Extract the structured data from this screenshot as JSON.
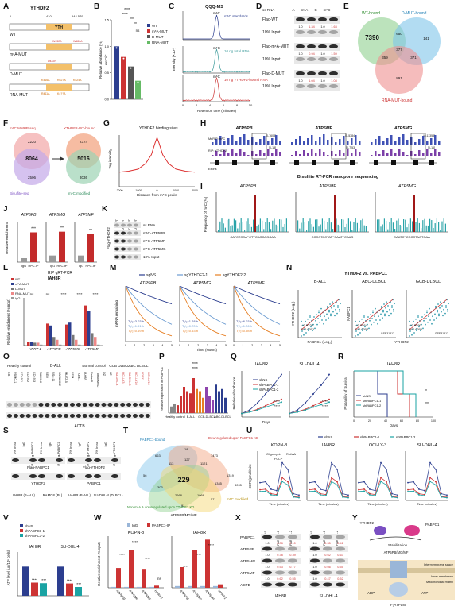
{
  "panels": {
    "A": {
      "letter": "A",
      "title": "YTHDF2",
      "pos_start": "1",
      "pos_mid": "410",
      "pos_end": "544 579",
      "domain": "YTH",
      "constructs": [
        "WT",
        "m⁶A-MUT",
        "D-MUT",
        "RNA-MUT"
      ],
      "mutations": {
        "m6a": [
          "W432A",
          "W486A"
        ],
        "d": [
          "D422N"
        ],
        "rna": [
          "K416A",
          "R527A",
          "K524A",
          "R411A",
          "K4??A"
        ]
      }
    },
    "B": {
      "letter": "B",
      "ylabel": "m⁶C/C",
      "ylabel2": "Relative abundance (%)",
      "legend": [
        "WT",
        "m⁶A-MUT",
        "D-MUT",
        "RNA-MUT"
      ],
      "sig": [
        "****",
        "****",
        "**",
        "**",
        "ns"
      ],
      "chart_data": {
        "type": "bar",
        "categories": [
          "WT",
          "m6A-MUT",
          "D-MUT",
          "RNA-MUT"
        ],
        "values": [
          1.0,
          0.8,
          0.62,
          0.35
        ],
        "ylim": [
          0,
          1.5
        ],
        "yticks": [
          "0.0",
          "0.5",
          "1.0",
          "1.5"
        ],
        "colors": [
          "#2c3e8f",
          "#c33",
          "#555",
          "#6b6"
        ]
      }
    },
    "C": {
      "letter": "C",
      "title": "QQQ-MS",
      "traces": [
        "m⁶C standards",
        "10 ng total RNA",
        "10 ng YTHDF2-bound RNA"
      ],
      "peak_label": "m⁶C",
      "ylabel": "Intensity (×10⁵)",
      "xlabel": "Retention time (minutes)",
      "xticks": [
        "0",
        "2",
        "4",
        "6",
        "8",
        "10"
      ]
    },
    "D": {
      "letter": "D",
      "header": [
        "ss RNA",
        "A",
        "m⁶A",
        "C",
        "m⁶C"
      ],
      "rows": [
        {
          "label": "Flag-WT",
          "vals": [
            "1.0",
            "1.34",
            "1.0",
            "1.63"
          ]
        },
        {
          "label": "10% Input",
          "vals": []
        },
        {
          "label": "Flag-m⁶A-MUT",
          "vals": [
            "1.0",
            "0.94",
            "1.0",
            "1.59"
          ]
        },
        {
          "label": "10% Input",
          "vals": []
        },
        {
          "label": "Flag-D-MUT",
          "vals": [
            "1.0",
            "1.04",
            "1.0",
            "1.08"
          ]
        },
        {
          "label": "10% Input",
          "vals": []
        }
      ]
    },
    "E": {
      "letter": "E",
      "sets": [
        "WT-bound",
        "D-MUT-bound",
        "RNA-MUT-bound"
      ],
      "values": [
        "7390",
        "650",
        "141",
        "377",
        "359",
        "371",
        "891"
      ]
    },
    "F": {
      "letter": "F",
      "left_top": "m⁶C MeRIP-seq",
      "left_bottom": "Bisulfite-seq",
      "left_vals": [
        "2220",
        "8064",
        "2506"
      ],
      "right_top": "YTHDF2-WT-bound",
      "right_bottom": "m⁶C modified",
      "right_vals": [
        "2374",
        "5016",
        "3036"
      ]
    },
    "G": {
      "letter": "G",
      "title": "YTHDF2 binding sites",
      "ylabel": "Tag intensity",
      "xlabel": "Distance from m⁶C peaks",
      "xticks": [
        "-2000",
        "-1500",
        "-1000",
        "-500",
        "0",
        "500",
        "1000",
        "1500",
        "2000"
      ],
      "chart_data": {
        "type": "line",
        "x": [
          -2000,
          -1500,
          -1000,
          -600,
          -300,
          -100,
          0,
          100,
          300,
          600,
          1000,
          1500,
          2000
        ],
        "y": [
          0.28,
          0.3,
          0.34,
          0.45,
          0.62,
          0.85,
          0.95,
          0.85,
          0.62,
          0.45,
          0.34,
          0.3,
          0.28
        ]
      }
    },
    "H": {
      "letter": "H",
      "genes": [
        "ATP5PB",
        "ATP5MF",
        "ATP5MG"
      ],
      "tracks": [
        "MeRIP: m⁶C",
        "RIP: YTHDF2",
        "Exons"
      ],
      "ranges": [
        [
          "0-7608",
          "0-13"
        ],
        [
          "0-5384",
          "0-7.53"
        ],
        [
          "0-11358",
          "0-16"
        ]
      ],
      "footer": "Bisulfite RT-PCR nanopore sequencing"
    },
    "I": {
      "letter": "I",
      "ylabel": "Frequency of m⁶C (%)",
      "genes": [
        "ATP5PB",
        "ATP5MF",
        "ATP5MG"
      ],
      "seqs": [
        "CATCTCCAᵐCTTCAGCAGGAA",
        "CCCGTACTATᵐCAATᵐCAAG",
        "CAATCᵐCCCCTACTGAA"
      ]
    },
    "J": {
      "letter": "J",
      "genes": [
        "ATP5PB",
        "ATP5MG",
        "ATP5MF"
      ],
      "ylabel": "Relative enrichment",
      "groups": [
        "IgG",
        "m⁶C-IP"
      ],
      "sig": [
        "***",
        "**",
        "**"
      ],
      "chart_data": {
        "type": "bar",
        "series": [
          {
            "gene": "ATP5PB",
            "values": [
              1.0,
              7.5
            ]
          },
          {
            "gene": "ATP5MG",
            "values": [
              1.0,
              4.6
            ]
          },
          {
            "gene": "ATP5MF",
            "values": [
              1.0,
              4.2
            ]
          }
        ],
        "ylims": [
          [
            0,
            10
          ],
          [
            0,
            6
          ],
          [
            0,
            6
          ]
        ]
      }
    },
    "K": {
      "letter": "K",
      "cols": [
        "WT",
        "m⁶A-MUT",
        "D-MUT",
        "RNA-MUT"
      ],
      "rows": [
        "ss RNA",
        "m⁶C-ATP5PB",
        "m⁶C-ATP5MF",
        "m⁶C-ATP5MG",
        "10% Input"
      ],
      "side": "Flag-YTHDF2"
    },
    "L": {
      "letter": "L",
      "title": "RIP qRT-PCR",
      "subtitle": "IAH8R",
      "legend": [
        "WT",
        "m⁶A-MUT",
        "D-MUT",
        "RNA-MUT",
        "IgG"
      ],
      "ylabel": "Relative enrichment (%Input)",
      "categories": [
        "HPRT-1",
        "ATP5PB",
        "ATP5MG",
        "ATP5MF"
      ],
      "sig": [
        "ns",
        "ns",
        "****",
        "****",
        "****"
      ],
      "chart_data": {
        "type": "bar",
        "categories": [
          "HPRT-1",
          "ATP5PB",
          "ATP5MG",
          "ATP5MF"
        ],
        "series": [
          {
            "name": "WT",
            "values": [
              0.4,
              2.3,
              2.2,
              4.2
            ]
          },
          {
            "name": "m6A-MUT",
            "values": [
              0.4,
              2.1,
              2.4,
              3.6
            ]
          },
          {
            "name": "D-MUT",
            "values": [
              0.3,
              0.9,
              1.1,
              1.3
            ]
          },
          {
            "name": "RNA-MUT",
            "values": [
              0.3,
              0.6,
              0.6,
              0.9
            ]
          },
          {
            "name": "IgG",
            "values": [
              0.1,
              0.1,
              0.1,
              0.1
            ]
          }
        ],
        "ylim": [
          0,
          5
        ]
      }
    },
    "M": {
      "letter": "M",
      "legend": [
        "sgNS",
        "sgYTHDF2-1",
        "sgYTHDF2-2"
      ],
      "genes": [
        "ATP5PB",
        "ATP5MG",
        "ATP5MF"
      ],
      "ylabel": "mRNA remaining",
      "xlabel": "Time (Hours)",
      "halflives": [
        [
          "T₁/₂=3.03 h",
          "T₁/₂=1.91 h",
          "T₁/₂=0.69 h"
        ],
        [
          "T₁/₂=1.28 h",
          "T₁/₂=0.70 h",
          "T₁/₂=0.53 h"
        ],
        [
          "T₁/₂=6.03 h",
          "T₁/₂=1.26 h",
          "T₁/₂=0.98 h"
        ]
      ],
      "xticks": [
        "0",
        "1",
        "2",
        "3",
        "4",
        "5"
      ]
    },
    "N": {
      "letter": "N",
      "title": "YTHDF2 vs. PABPC1",
      "panels": [
        {
          "name": "B-ALL",
          "r": "r=0.5220",
          "p": "P<0.0001",
          "ds": ""
        },
        {
          "name": "ABC-DLBCL",
          "r": "r=0.1864",
          "p": "P=0.0002",
          "ds": "GSE31312"
        },
        {
          "name": "GCB-DLBCL",
          "r": "r=0.5590",
          "p": "P<0.0001",
          "ds": "GSE31312"
        }
      ],
      "xlabel1": "PABPC1 (Log₂)",
      "ylabel1": "YTHDF2 (Log₂)",
      "xlabel2": "YTHDF2",
      "ylabel2": "PABPC1"
    },
    "O": {
      "letter": "O",
      "groups": [
        "Healthy control",
        "B-ALL",
        "Normal control",
        "GCB DLBCL",
        "ABC DLBCL"
      ],
      "lanes": [
        "CB",
        "PBMC-1",
        "CD19-1",
        "CD19-2",
        "CD19-3",
        "NALM-6",
        "REH",
        "RS4;11",
        "KASUMI-2",
        "MUTZ-5",
        "SEM",
        "TOM-1",
        "IAH8R",
        "Naive B",
        "Tonsil MNC",
        "DZ",
        "LZ",
        "SU-DHL-4",
        "OCI-LY3",
        "SU-DHL-6",
        "OCI-LY10",
        "U2932",
        "OCI-LY10"
      ],
      "rows": [
        "PABPC1",
        "ACTB"
      ]
    },
    "P": {
      "letter": "P",
      "ylabel": "Relative expression of PABPC1",
      "groups": [
        "Healthy control",
        "B-ALL",
        "GCB-DLBCL",
        "ABC-DLBCL"
      ],
      "sig": [
        "****",
        "****"
      ]
    },
    "Q": {
      "letter": "Q",
      "titles": [
        "IAH8R",
        "SU-DHL-4"
      ],
      "legend": [
        "shNS",
        "shPABPC1-1",
        "shPABPC1-2"
      ],
      "ylabel": "Relative absorbance",
      "xlabel": "Days",
      "sig": [
        "****",
        "****",
        "****",
        "****"
      ],
      "chart_data": {
        "type": "line",
        "x": [
          1,
          2,
          3,
          4,
          5,
          6
        ],
        "series": [
          {
            "name": "shNS",
            "values": [
              1,
              2,
              4,
              6.5,
              9,
              12
            ]
          },
          {
            "name": "shPABPC1-1",
            "values": [
              1,
              1.5,
              2.2,
              3.2,
              4.2,
              5
            ]
          },
          {
            "name": "shPABPC1-2",
            "values": [
              1,
              1.4,
              2,
              2.8,
              3.5,
              4.2
            ]
          }
        ]
      }
    },
    "R": {
      "letter": "R",
      "title": "IAH8R",
      "ylabel": "Probability of Survival",
      "xlabel": "Days",
      "legend": [
        "shNS",
        "shPABPC1-1",
        "shPABPC1-2"
      ],
      "sig": [
        "*",
        "**"
      ],
      "xticks": [
        "0",
        "20",
        "40",
        "60",
        "80",
        "100"
      ]
    },
    "S": {
      "letter": "S",
      "left_cols": [
        "2% Input",
        "IgG",
        "IP: Flag-PABPC1",
        "2% Input",
        "IgG",
        "IP: Flag-PABPC1"
      ],
      "right_cols": [
        "2% Input",
        "IgG",
        "IP: Flag-YTHDF2",
        "2% Input",
        "IgG",
        "IP: Flag-YTHDF2"
      ],
      "left_rows": [
        "Flag-PABPC1",
        "YTHDF2"
      ],
      "right_rows": [
        "Flag-YTHDF2",
        "PABPC1"
      ],
      "cells_left": [
        "IAH8R (B-ALL)",
        "RAMOS (BL)"
      ],
      "cells_right": [
        "IAH8R (B-ALL)",
        "SU-DHL-4 (DLBCL)"
      ]
    },
    "T": {
      "letter": "T",
      "sets": [
        "PABPC1-bound",
        "Downregulated upon PABPC1 KD",
        "m⁶C modified",
        "Non-m⁶A & downregulated upon YTHDF2 KD"
      ],
      "center": "229",
      "center_label": "ATP5PB/MG/MF",
      "values": [
        "663",
        "18",
        "1473",
        "113",
        "1121",
        "1319",
        "8095",
        "56",
        "127",
        "2668",
        "1068",
        "1345",
        "303",
        "91",
        "57"
      ]
    },
    "U": {
      "letter": "U",
      "legend": [
        "shNS",
        "shPABPC1-1",
        "shPABPC1-2"
      ],
      "titles": [
        "KOPN-8",
        "IAH8R",
        "OCI-LY-3",
        "SU-DHL-4"
      ],
      "drugs": [
        "Oligomycin",
        "FCCP",
        "Rot/AA"
      ],
      "ylabel": "OCR (pmol/min)",
      "xlabel": "Time (minutes)"
    },
    "V": {
      "letter": "V",
      "legend": [
        "shNS",
        "shPABPC1-1",
        "shPABPC1-2"
      ],
      "titles": [
        "IAH8R",
        "SU-DHL-4"
      ],
      "ylabel": "ATP level (μg/10⁶ cells)",
      "sig": [
        "****",
        "****",
        "****",
        "****"
      ],
      "chart_data": {
        "type": "bar",
        "categories": [
          "IAH8R",
          "SU-DHL-4"
        ],
        "series": [
          {
            "name": "shNS",
            "values": [
              1.0,
              1.0
            ]
          },
          {
            "name": "shPABPC1-1",
            "values": [
              0.45,
              0.42
            ]
          },
          {
            "name": "shPABPC1-2",
            "values": [
              0.43,
              0.3
            ]
          }
        ],
        "ylim": [
          0,
          1.5
        ]
      }
    },
    "W": {
      "letter": "W",
      "legend": [
        "IgG",
        "PABPC1-IP"
      ],
      "titles": [
        "KOPN-8",
        "IAH8R"
      ],
      "ylabel": "Relative enrichment (%Input)",
      "categories": [
        "ATP5PB",
        "ATP5MG",
        "ATP5MF",
        "HPRT-1"
      ],
      "sig": [
        "****",
        "****",
        "****",
        "ns",
        "****",
        "****",
        "****"
      ],
      "chart_data": {
        "type": "bar",
        "panels": [
          {
            "title": "KOPN-8",
            "IgG": [
              0.1,
              0.1,
              0.1,
              0.1
            ],
            "IP": [
              2.3,
              4.4,
              2.2,
              0.25
            ],
            "ylim": [
              0,
              6
            ]
          },
          {
            "title": "IAH8R",
            "IgG": [
              0.1,
              0.1,
              0.1,
              0.1
            ],
            "IP": [
              1.2,
              2.2,
              2.8,
              0.2
            ],
            "ylim": [
              0,
              3
            ]
          }
        ]
      }
    },
    "X": {
      "letter": "X",
      "cols": [
        "shNS",
        "shPABPC1-1",
        "shPABPC1-2",
        "shNS",
        "shPABPC1-1",
        "shPABPC1-2"
      ],
      "rows": [
        {
          "label": "PABPC1",
          "vals": [
            "1.0",
            "0.08",
            "0.10",
            "1.0",
            "0.35",
            "0.41"
          ]
        },
        {
          "label": "ATP5PB",
          "vals": [
            "1.0",
            "0.38",
            "0.39",
            "1.0",
            "0.62",
            "0.63"
          ]
        },
        {
          "label": "ATP5MG",
          "vals": [
            "1.0",
            "0.53",
            "0.77",
            "1.0",
            "0.66",
            "0.55"
          ]
        },
        {
          "label": "ATP5MF",
          "vals": [
            "1.0",
            "0.62",
            "0.55",
            "1.0",
            "0.47",
            "0.52"
          ]
        },
        {
          "label": "ACTB",
          "vals": []
        }
      ],
      "cells": [
        "IAH8R",
        "SU-DHL-4"
      ]
    },
    "Y": {
      "letter": "Y",
      "labels": [
        "YTHDF2",
        "PABPC1",
        "Stabilization",
        "ATP5PB/MG/MF",
        "Intermembrane space",
        "Inner membrane",
        "Mitochondrial matrix",
        "ADP",
        "ATP",
        "F₁ATPase"
      ]
    }
  }
}
